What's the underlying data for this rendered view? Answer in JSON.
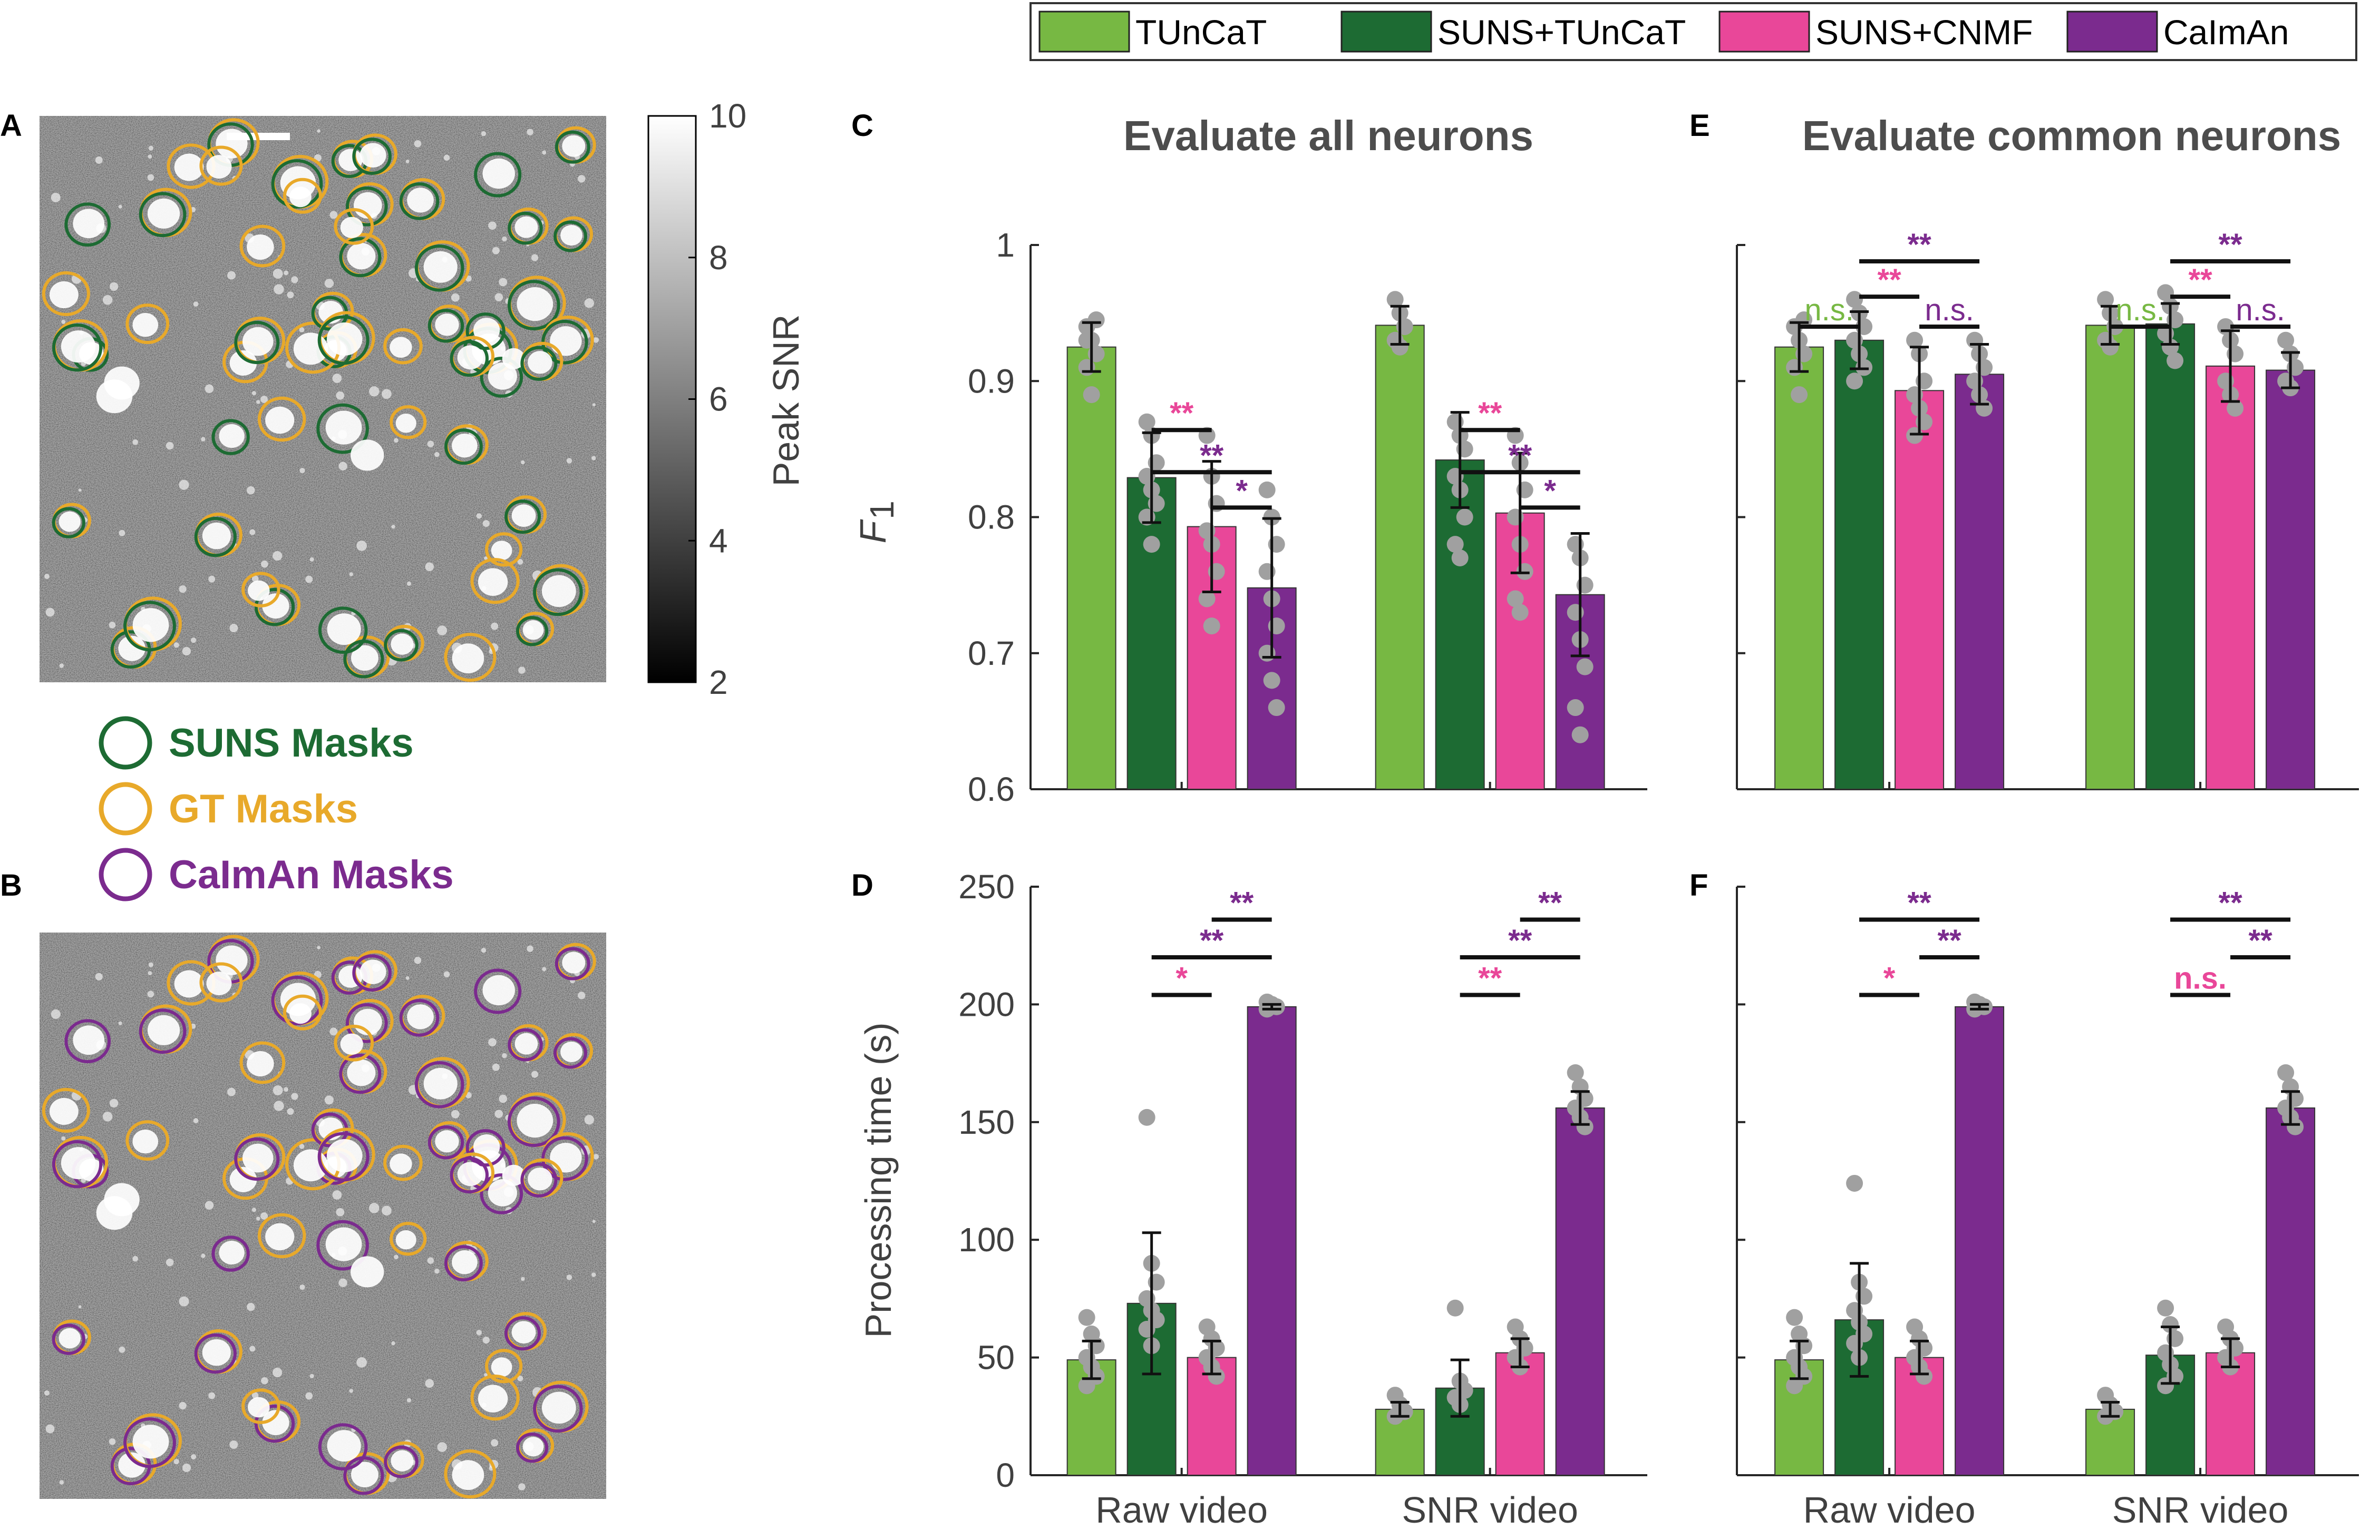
{
  "legend": [
    {
      "label": "TUnCaT",
      "color": "#77b843"
    },
    {
      "label": "SUNS+TUnCaT",
      "color": "#1d6b33"
    },
    {
      "label": "SUNS+CNMF",
      "color": "#e94799"
    },
    {
      "label": "CaImAn",
      "color": "#7b2b8e"
    }
  ],
  "colors": {
    "tuncat": "#77b843",
    "suns_tuncat": "#1d6b33",
    "suns_cnmf": "#e94799",
    "caiman": "#7b2b8e",
    "gt": "#e8a92a",
    "dot": "#a0a0a0"
  },
  "image_panels": {
    "label_a": "A",
    "label_b": "B",
    "colorbar": {
      "label": "Peak SNR",
      "ticks": [
        "10",
        "8",
        "6",
        "4",
        "2"
      ]
    },
    "mask_legend": [
      {
        "label": "SUNS Masks",
        "color": "#1d6b33"
      },
      {
        "label": "GT Masks",
        "color": "#e8a92a"
      },
      {
        "label": "CaImAn Masks",
        "color": "#7b2b8e"
      }
    ]
  },
  "chart_data": [
    {
      "panel": "C",
      "type": "bar",
      "title": "Evaluate all neurons",
      "ylabel": "F",
      "ylabel_sub": "1",
      "ylim": [
        0.6,
        1.0
      ],
      "yticks": [
        "0.6",
        "0.7",
        "0.8",
        "0.9",
        "1"
      ],
      "ytick_values": [
        0.6,
        0.7,
        0.8,
        0.9,
        1.0
      ],
      "categories": [
        "Raw video",
        "SNR video"
      ],
      "show_xlabels": false,
      "series": [
        {
          "name": "TUnCaT",
          "values": [
            0.925,
            0.941
          ],
          "err": [
            0.018,
            0.014
          ]
        },
        {
          "name": "SUNS+TUnCaT",
          "values": [
            0.829,
            0.842
          ],
          "err": [
            0.033,
            0.035
          ]
        },
        {
          "name": "SUNS+CNMF",
          "values": [
            0.793,
            0.803
          ],
          "err": [
            0.048,
            0.044
          ]
        },
        {
          "name": "CaImAn",
          "values": [
            0.748,
            0.743
          ],
          "err": [
            0.051,
            0.045
          ]
        }
      ],
      "points": [
        [
          [
            0.94,
            0.93,
            0.92,
            0.91,
            0.89,
            0.945,
            0.93
          ],
          [
            0.96,
            0.95,
            0.94,
            0.93,
            0.925,
            0.94
          ]
        ],
        [
          [
            0.87,
            0.86,
            0.84,
            0.83,
            0.82,
            0.81,
            0.8,
            0.78
          ],
          [
            0.87,
            0.86,
            0.85,
            0.83,
            0.82,
            0.8,
            0.78,
            0.77
          ]
        ],
        [
          [
            0.86,
            0.83,
            0.81,
            0.79,
            0.78,
            0.76,
            0.74,
            0.72
          ],
          [
            0.86,
            0.84,
            0.82,
            0.8,
            0.78,
            0.76,
            0.74,
            0.73
          ]
        ],
        [
          [
            0.82,
            0.8,
            0.78,
            0.76,
            0.74,
            0.72,
            0.7,
            0.68,
            0.66
          ],
          [
            0.78,
            0.77,
            0.75,
            0.73,
            0.71,
            0.69,
            0.66,
            0.64
          ]
        ]
      ],
      "sig": [
        {
          "group": 0,
          "from": 1,
          "to": 2,
          "y": 0.864,
          "text": "**",
          "color": "#e94799"
        },
        {
          "group": 0,
          "from": 1,
          "to": 3,
          "y": 0.833,
          "text": "**",
          "color": "#7b2b8e"
        },
        {
          "group": 0,
          "from": 2,
          "to": 3,
          "y": 0.807,
          "text": "*",
          "color": "#7b2b8e"
        },
        {
          "group": 1,
          "from": 1,
          "to": 2,
          "y": 0.864,
          "text": "**",
          "color": "#e94799"
        },
        {
          "group": 1,
          "from": 1,
          "to": 3,
          "y": 0.833,
          "text": "**",
          "color": "#7b2b8e"
        },
        {
          "group": 1,
          "from": 2,
          "to": 3,
          "y": 0.807,
          "text": "*",
          "color": "#7b2b8e"
        }
      ]
    },
    {
      "panel": "E",
      "type": "bar",
      "title": "Evaluate common neurons",
      "ylim": [
        0.6,
        1.0
      ],
      "yticks": [],
      "ytick_values": [
        0.6,
        0.7,
        0.8,
        0.9,
        1.0
      ],
      "categories": [
        "Raw video",
        "SNR video"
      ],
      "show_xlabels": false,
      "series": [
        {
          "name": "TUnCaT",
          "values": [
            0.925,
            0.941
          ],
          "err": [
            0.018,
            0.014
          ]
        },
        {
          "name": "SUNS+TUnCaT",
          "values": [
            0.93,
            0.942
          ],
          "err": [
            0.021,
            0.015
          ]
        },
        {
          "name": "SUNS+CNMF",
          "values": [
            0.893,
            0.911
          ],
          "err": [
            0.032,
            0.026
          ]
        },
        {
          "name": "CaImAn",
          "values": [
            0.905,
            0.908
          ],
          "err": [
            0.022,
            0.013
          ]
        }
      ],
      "points": [
        [
          [
            0.94,
            0.93,
            0.92,
            0.91,
            0.89,
            0.945
          ],
          [
            0.96,
            0.95,
            0.94,
            0.93,
            0.925
          ]
        ],
        [
          [
            0.96,
            0.95,
            0.94,
            0.93,
            0.92,
            0.91,
            0.9
          ],
          [
            0.965,
            0.955,
            0.945,
            0.935,
            0.925,
            0.915
          ]
        ],
        [
          [
            0.93,
            0.92,
            0.9,
            0.89,
            0.88,
            0.87,
            0.86
          ],
          [
            0.94,
            0.93,
            0.92,
            0.9,
            0.89,
            0.88
          ]
        ],
        [
          [
            0.93,
            0.92,
            0.91,
            0.9,
            0.89,
            0.88
          ],
          [
            0.93,
            0.92,
            0.91,
            0.9,
            0.895
          ]
        ]
      ],
      "sig": [
        {
          "group": 0,
          "from": 0,
          "to": 1,
          "y": 0.94,
          "text": "n.s.",
          "color": "#77b843",
          "plain": true
        },
        {
          "group": 0,
          "from": 2,
          "to": 3,
          "y": 0.94,
          "text": "n.s.",
          "color": "#7b2b8e",
          "plain": true
        },
        {
          "group": 0,
          "from": 1,
          "to": 2,
          "y": 0.962,
          "text": "**",
          "color": "#e94799"
        },
        {
          "group": 0,
          "from": 1,
          "to": 3,
          "y": 0.988,
          "text": "**",
          "color": "#7b2b8e"
        },
        {
          "group": 1,
          "from": 0,
          "to": 1,
          "y": 0.94,
          "text": "n.s.",
          "color": "#77b843",
          "plain": true
        },
        {
          "group": 1,
          "from": 2,
          "to": 3,
          "y": 0.94,
          "text": "n.s.",
          "color": "#7b2b8e",
          "plain": true
        },
        {
          "group": 1,
          "from": 1,
          "to": 2,
          "y": 0.962,
          "text": "**",
          "color": "#e94799"
        },
        {
          "group": 1,
          "from": 1,
          "to": 3,
          "y": 0.988,
          "text": "**",
          "color": "#7b2b8e"
        }
      ]
    },
    {
      "panel": "D",
      "type": "bar",
      "title": "",
      "ylabel": "Processing time (s)",
      "ylim": [
        0,
        250
      ],
      "yticks": [
        "0",
        "50",
        "100",
        "150",
        "200",
        "250"
      ],
      "ytick_values": [
        0,
        50,
        100,
        150,
        200,
        250
      ],
      "categories": [
        "Raw video",
        "SNR video"
      ],
      "show_xlabels": true,
      "series": [
        {
          "name": "TUnCaT",
          "values": [
            49,
            28
          ],
          "err": [
            8,
            3
          ]
        },
        {
          "name": "SUNS+TUnCaT",
          "values": [
            73,
            37
          ],
          "err": [
            30,
            12
          ]
        },
        {
          "name": "SUNS+CNMF",
          "values": [
            50,
            52
          ],
          "err": [
            7,
            6
          ]
        },
        {
          "name": "CaImAn",
          "values": [
            199,
            156
          ],
          "err": [
            1,
            7
          ]
        }
      ],
      "points": [
        [
          [
            67,
            60,
            55,
            50,
            46,
            42,
            38
          ],
          [
            34,
            30,
            27,
            25
          ]
        ],
        [
          [
            152,
            90,
            82,
            75,
            70,
            66,
            62,
            55
          ],
          [
            71,
            40,
            36,
            33,
            30
          ]
        ],
        [
          [
            63,
            58,
            54,
            50,
            46,
            42
          ],
          [
            63,
            58,
            54,
            50,
            46
          ]
        ],
        [
          [
            201,
            200,
            199,
            198
          ],
          [
            171,
            165,
            160,
            156,
            152,
            148
          ]
        ]
      ],
      "sig": [
        {
          "group": 0,
          "from": 2,
          "to": 3,
          "y": 236,
          "text": "**",
          "color": "#7b2b8e"
        },
        {
          "group": 0,
          "from": 1,
          "to": 3,
          "y": 220,
          "text": "**",
          "color": "#7b2b8e"
        },
        {
          "group": 0,
          "from": 1,
          "to": 2,
          "y": 204,
          "text": "*",
          "color": "#e94799"
        },
        {
          "group": 1,
          "from": 2,
          "to": 3,
          "y": 236,
          "text": "**",
          "color": "#7b2b8e"
        },
        {
          "group": 1,
          "from": 1,
          "to": 3,
          "y": 220,
          "text": "**",
          "color": "#7b2b8e"
        },
        {
          "group": 1,
          "from": 1,
          "to": 2,
          "y": 204,
          "text": "**",
          "color": "#e94799"
        }
      ]
    },
    {
      "panel": "F",
      "type": "bar",
      "title": "",
      "ylim": [
        0,
        250
      ],
      "yticks": [],
      "ytick_values": [
        0,
        50,
        100,
        150,
        200,
        250
      ],
      "categories": [
        "Raw video",
        "SNR video"
      ],
      "show_xlabels": true,
      "series": [
        {
          "name": "TUnCaT",
          "values": [
            49,
            28
          ],
          "err": [
            8,
            3
          ]
        },
        {
          "name": "SUNS+TUnCaT",
          "values": [
            66,
            51
          ],
          "err": [
            24,
            12
          ]
        },
        {
          "name": "SUNS+CNMF",
          "values": [
            50,
            52
          ],
          "err": [
            7,
            6
          ]
        },
        {
          "name": "CaImAn",
          "values": [
            199,
            156
          ],
          "err": [
            1,
            7
          ]
        }
      ],
      "points": [
        [
          [
            67,
            60,
            55,
            50,
            46,
            42,
            38
          ],
          [
            34,
            30,
            27,
            25
          ]
        ],
        [
          [
            124,
            82,
            76,
            70,
            65,
            60,
            56,
            50
          ],
          [
            71,
            64,
            58,
            52,
            47,
            42,
            38
          ]
        ],
        [
          [
            63,
            58,
            54,
            50,
            46,
            42
          ],
          [
            63,
            58,
            54,
            50,
            46
          ]
        ],
        [
          [
            201,
            200,
            199,
            198
          ],
          [
            171,
            165,
            160,
            156,
            152,
            148
          ]
        ]
      ],
      "sig": [
        {
          "group": 0,
          "from": 1,
          "to": 3,
          "y": 236,
          "text": "**",
          "color": "#7b2b8e"
        },
        {
          "group": 0,
          "from": 2,
          "to": 3,
          "y": 220,
          "text": "**",
          "color": "#7b2b8e"
        },
        {
          "group": 0,
          "from": 1,
          "to": 2,
          "y": 204,
          "text": "*",
          "color": "#e94799"
        },
        {
          "group": 1,
          "from": 1,
          "to": 3,
          "y": 236,
          "text": "**",
          "color": "#7b2b8e"
        },
        {
          "group": 1,
          "from": 2,
          "to": 3,
          "y": 220,
          "text": "**",
          "color": "#7b2b8e"
        },
        {
          "group": 1,
          "from": 1,
          "to": 2,
          "y": 204,
          "text": "n.s.",
          "color": "#e94799"
        }
      ]
    }
  ]
}
